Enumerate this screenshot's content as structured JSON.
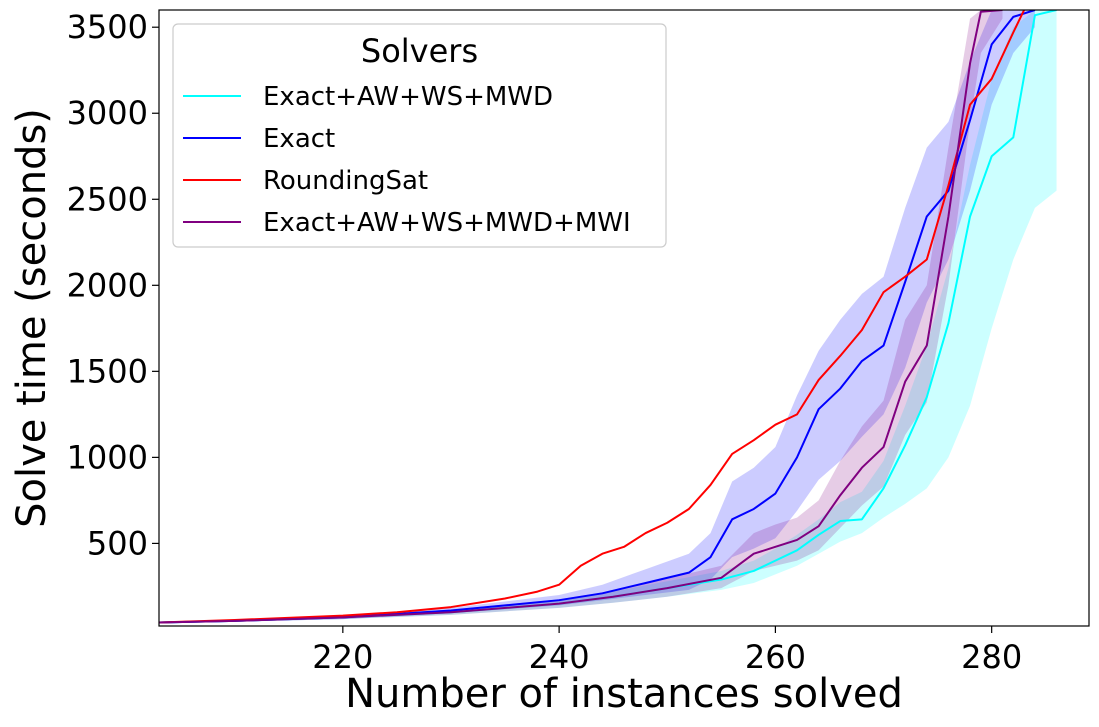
{
  "chart_data": {
    "type": "line",
    "title": "",
    "xlabel": "Number of instances solved",
    "ylabel": "Solve time (seconds)",
    "xlim": [
      203,
      289
    ],
    "ylim": [
      20,
      3600
    ],
    "xticks": [
      220,
      240,
      260,
      280
    ],
    "yticks": [
      500,
      1000,
      1500,
      2000,
      2500,
      3000,
      3500
    ],
    "grid": false,
    "legend": {
      "title": "Solvers",
      "placement": "top-left"
    },
    "series": [
      {
        "name": "Exact+AW+WS+MWD",
        "color": "#00ffff",
        "x": [
          203,
          210,
          220,
          230,
          240,
          245,
          250,
          255,
          258,
          260,
          262,
          264,
          266,
          268,
          270,
          272,
          274,
          276,
          278,
          280,
          282,
          284,
          286
        ],
        "y": [
          40,
          50,
          70,
          100,
          150,
          190,
          240,
          290,
          340,
          400,
          460,
          550,
          630,
          640,
          820,
          1070,
          1350,
          1780,
          2400,
          2750,
          2860,
          3570,
          3600
        ],
        "band_lower": [
          35,
          45,
          60,
          85,
          125,
          155,
          190,
          230,
          270,
          320,
          370,
          440,
          510,
          560,
          650,
          730,
          820,
          1000,
          1300,
          1750,
          2150,
          2450,
          2550
        ],
        "band_upper": [
          45,
          55,
          80,
          115,
          175,
          220,
          280,
          340,
          400,
          470,
          550,
          640,
          740,
          800,
          980,
          1300,
          1650,
          2100,
          2700,
          3200,
          3500,
          3600,
          3600
        ]
      },
      {
        "name": "Exact",
        "color": "#0000ff",
        "x": [
          203,
          210,
          220,
          230,
          240,
          244,
          248,
          252,
          254,
          256,
          258,
          260,
          262,
          264,
          266,
          268,
          270,
          272,
          274,
          276,
          278,
          280,
          282,
          284
        ],
        "y": [
          40,
          50,
          70,
          110,
          170,
          210,
          270,
          330,
          420,
          640,
          700,
          790,
          1000,
          1280,
          1400,
          1560,
          1650,
          2020,
          2400,
          2550,
          2960,
          3400,
          3560,
          3600
        ],
        "band_lower": [
          35,
          45,
          60,
          95,
          140,
          170,
          200,
          230,
          290,
          420,
          470,
          530,
          690,
          870,
          980,
          1120,
          1250,
          1520,
          1900,
          2150,
          2550,
          3050,
          3350,
          3500
        ],
        "band_upper": [
          45,
          55,
          80,
          125,
          200,
          260,
          350,
          440,
          560,
          860,
          940,
          1060,
          1360,
          1620,
          1800,
          1950,
          2050,
          2450,
          2800,
          2950,
          3300,
          3600,
          3600,
          3600
        ]
      },
      {
        "name": "RoundingSat",
        "color": "#ff0000",
        "x": [
          203,
          210,
          220,
          225,
          230,
          235,
          238,
          240,
          242,
          244,
          246,
          248,
          250,
          252,
          254,
          256,
          258,
          260,
          262,
          264,
          266,
          268,
          270,
          272,
          274,
          276,
          278,
          280,
          282,
          283
        ],
        "y": [
          40,
          55,
          80,
          100,
          130,
          180,
          220,
          260,
          370,
          440,
          480,
          560,
          620,
          700,
          840,
          1020,
          1100,
          1190,
          1250,
          1450,
          1590,
          1740,
          1960,
          2050,
          2150,
          2580,
          3050,
          3200,
          3470,
          3600
        ]
      },
      {
        "name": "Exact+AW+WS+MWD+MWI",
        "color": "#800080",
        "x": [
          203,
          210,
          220,
          230,
          240,
          245,
          250,
          255,
          258,
          260,
          262,
          264,
          266,
          268,
          270,
          272,
          274,
          276,
          278,
          279,
          281
        ],
        "y": [
          40,
          50,
          70,
          100,
          150,
          190,
          240,
          300,
          440,
          480,
          520,
          600,
          780,
          940,
          1060,
          1440,
          1650,
          2400,
          3290,
          3590,
          3600
        ],
        "band_lower": [
          35,
          45,
          60,
          85,
          125,
          155,
          190,
          240,
          340,
          370,
          400,
          460,
          590,
          720,
          830,
          1130,
          1320,
          2000,
          2950,
          3350,
          3550
        ],
        "band_upper": [
          45,
          55,
          80,
          115,
          175,
          225,
          295,
          370,
          560,
          610,
          650,
          750,
          980,
          1180,
          1330,
          1800,
          2000,
          2800,
          3550,
          3600,
          3600
        ]
      }
    ]
  }
}
